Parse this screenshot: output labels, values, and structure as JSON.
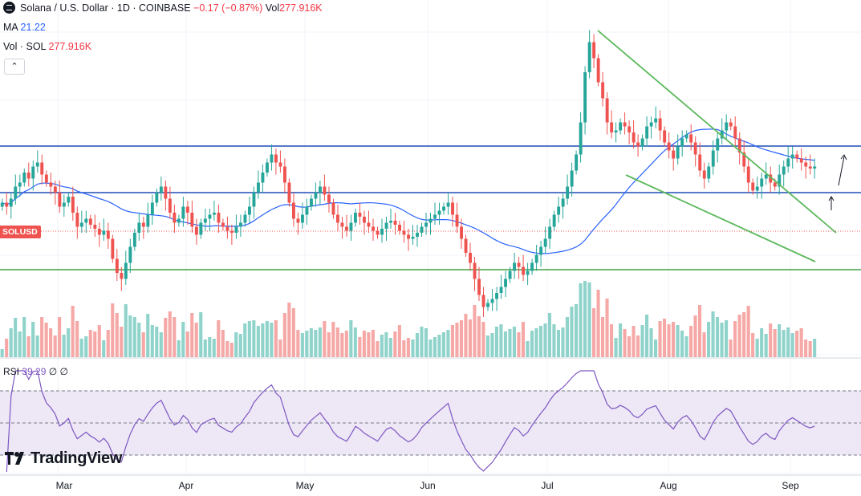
{
  "header": {
    "symbol_line": "Solana / U.S. Dollar · 1D · COINBASE",
    "change": "−0.17 (−0.87%)",
    "volume_label": "Vol",
    "volume_value": "277.916K",
    "ma_label": "MA",
    "ma_value": "21.22",
    "vol_label": "Vol · SOL",
    "vol_value": "277.916K",
    "collapse_icon": "chevron-up-icon"
  },
  "price_tag": "SOLUSD",
  "rsi": {
    "label": "RSI",
    "value": "39.29",
    "extra1": "∅",
    "extra2": "∅"
  },
  "brand": "TradingView",
  "x_axis_labels": [
    "Mar",
    "Apr",
    "May",
    "Jun",
    "Jul",
    "Aug",
    "Sep"
  ],
  "colors": {
    "up": "#26a69a",
    "down": "#ef5350",
    "ma": "#2962ff",
    "hline_blue": "#1e4db7",
    "hline_green": "#43a047",
    "trend": "#5cb85c",
    "rsi": "#7e57c2",
    "rsi_band": "#ede7f6"
  },
  "chart_data": {
    "type": "candlestick",
    "note_sources": "values estimated from price pane (no price scale visible)",
    "x_start": "2024-02-10",
    "x_end": "2024-09-08",
    "ohlc_close": [
      110,
      108,
      112,
      118,
      120,
      125,
      122,
      128,
      130,
      124,
      120,
      118,
      115,
      108,
      110,
      113,
      105,
      98,
      100,
      102,
      99,
      97,
      94,
      96,
      92,
      82,
      75,
      72,
      80,
      88,
      95,
      100,
      98,
      104,
      110,
      115,
      118,
      112,
      105,
      100,
      102,
      108,
      105,
      98,
      94,
      100,
      102,
      104,
      105,
      100,
      98,
      96,
      95,
      98,
      100,
      104,
      108,
      115,
      120,
      125,
      130,
      134,
      130,
      128,
      120,
      110,
      102,
      100,
      104,
      108,
      112,
      115,
      118,
      114,
      110,
      104,
      100,
      98,
      96,
      100,
      105,
      103,
      100,
      98,
      96,
      94,
      97,
      100,
      101,
      99,
      96,
      94,
      92,
      93,
      95,
      98,
      100,
      102,
      104,
      106,
      108,
      110,
      104,
      98,
      92,
      85,
      80,
      72,
      64,
      58,
      60,
      62,
      65,
      68,
      72,
      76,
      80,
      78,
      74,
      76,
      80,
      84,
      88,
      92,
      98,
      104,
      108,
      112,
      118,
      126,
      134,
      150,
      175,
      190,
      182,
      170,
      162,
      150,
      145,
      146,
      150,
      148,
      145,
      140,
      138,
      142,
      148,
      150,
      152,
      146,
      140,
      136,
      132,
      138,
      142,
      144,
      140,
      134,
      126,
      122,
      128,
      136,
      142,
      146,
      150,
      148,
      142,
      135,
      128,
      120,
      116,
      118,
      122,
      124,
      120,
      118,
      124,
      128,
      132,
      134,
      132,
      130,
      128,
      127,
      128
    ]
  }
}
